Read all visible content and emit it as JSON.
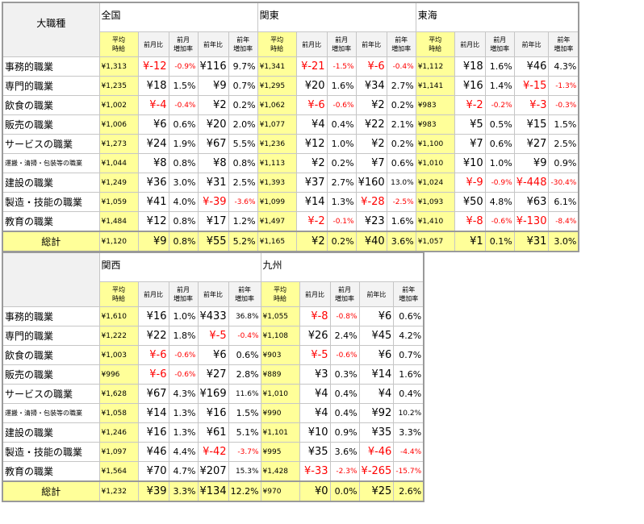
{
  "top_table": {
    "corner_label": "大職種",
    "regions": [
      "全国",
      "関東",
      "東海"
    ],
    "sub_headers": [
      "平均時給",
      "前月比",
      "前月増加率",
      "前年比",
      "前年増加率"
    ],
    "rows": [
      {
        "job": "事務的職業",
        "cells": [
          "¥1,313",
          "¥-12",
          "-0.9%",
          "¥116",
          "9.7%",
          "¥1,341",
          "¥-21",
          "-1.5%",
          "¥-6",
          "-0.4%",
          "¥1,112",
          "¥18",
          "1.6%",
          "¥46",
          "4.3%"
        ]
      },
      {
        "job": "専門的職業",
        "cells": [
          "¥1,235",
          "¥18",
          "1.5%",
          "¥9",
          "0.7%",
          "¥1,295",
          "¥20",
          "1.6%",
          "¥34",
          "2.7%",
          "¥1,141",
          "¥16",
          "1.4%",
          "¥-15",
          "-1.3%"
        ]
      },
      {
        "job": "飲食の職業",
        "cells": [
          "¥1,002",
          "¥-4",
          "-0.4%",
          "¥2",
          "0.2%",
          "¥1,062",
          "¥-6",
          "-0.6%",
          "¥2",
          "0.2%",
          "¥983",
          "¥-2",
          "-0.2%",
          "¥-3",
          "-0.3%"
        ]
      },
      {
        "job": "販売の職業",
        "cells": [
          "¥1,006",
          "¥6",
          "0.6%",
          "¥20",
          "2.0%",
          "¥1,077",
          "¥4",
          "0.4%",
          "¥22",
          "2.1%",
          "¥983",
          "¥5",
          "0.5%",
          "¥15",
          "1.5%"
        ]
      },
      {
        "job": "サービスの職業",
        "cells": [
          "¥1,273",
          "¥24",
          "1.9%",
          "¥67",
          "5.5%",
          "¥1,236",
          "¥12",
          "1.0%",
          "¥2",
          "0.2%",
          "¥1,100",
          "¥7",
          "0.6%",
          "¥27",
          "2.5%"
        ]
      },
      {
        "job": "運搬・清掃・包装等の職業",
        "cells": [
          "¥1,044",
          "¥8",
          "0.8%",
          "¥8",
          "0.8%",
          "¥1,113",
          "¥2",
          "0.2%",
          "¥7",
          "0.6%",
          "¥1,010",
          "¥10",
          "1.0%",
          "¥9",
          "0.9%"
        ]
      },
      {
        "job": "建設の職業",
        "cells": [
          "¥1,249",
          "¥36",
          "3.0%",
          "¥31",
          "2.5%",
          "¥1,393",
          "¥37",
          "2.7%",
          "¥160",
          "13.0%",
          "¥1,024",
          "¥-9",
          "-0.9%",
          "¥-448",
          "-30.4%"
        ]
      },
      {
        "job": "製造・技能の職業",
        "cells": [
          "¥1,059",
          "¥41",
          "4.0%",
          "¥-39",
          "-3.6%",
          "¥1,099",
          "¥14",
          "1.3%",
          "¥-28",
          "-2.5%",
          "¥1,093",
          "¥50",
          "4.8%",
          "¥63",
          "6.1%"
        ]
      },
      {
        "job": "教育の職業",
        "cells": [
          "¥1,484",
          "¥12",
          "0.8%",
          "¥17",
          "1.2%",
          "¥1,497",
          "¥-2",
          "-0.1%",
          "¥23",
          "1.6%",
          "¥1,410",
          "¥-8",
          "-0.6%",
          "¥-130",
          "-8.4%"
        ]
      }
    ],
    "total": {
      "label": "総計",
      "cells": [
        "¥1,120",
        "¥9",
        "0.8%",
        "¥55",
        "5.2%",
        "¥1,165",
        "¥2",
        "0.2%",
        "¥40",
        "3.6%",
        "¥1,057",
        "¥1",
        "0.1%",
        "¥31",
        "3.0%"
      ]
    }
  },
  "bottom_table": {
    "regions": [
      "関西",
      "九州"
    ],
    "rows": [
      {
        "job": "事務的職業",
        "cells": [
          "¥1,610",
          "¥16",
          "1.0%",
          "¥433",
          "36.8%",
          "¥1,055",
          "¥-8",
          "-0.8%",
          "¥6",
          "0.6%"
        ]
      },
      {
        "job": "専門的職業",
        "cells": [
          "¥1,222",
          "¥22",
          "1.8%",
          "¥-5",
          "-0.4%",
          "¥1,108",
          "¥26",
          "2.4%",
          "¥45",
          "4.2%"
        ]
      },
      {
        "job": "飲食の職業",
        "cells": [
          "¥1,003",
          "¥-6",
          "-0.6%",
          "¥6",
          "0.6%",
          "¥903",
          "¥-5",
          "-0.6%",
          "¥6",
          "0.7%"
        ]
      },
      {
        "job": "販売の職業",
        "cells": [
          "¥996",
          "¥-6",
          "-0.6%",
          "¥27",
          "2.8%",
          "¥889",
          "¥3",
          "0.3%",
          "¥14",
          "1.6%"
        ]
      },
      {
        "job": "サービスの職業",
        "cells": [
          "¥1,628",
          "¥67",
          "4.3%",
          "¥169",
          "11.6%",
          "¥1,010",
          "¥4",
          "0.4%",
          "¥4",
          "0.4%"
        ]
      },
      {
        "job": "運搬・清掃・包装等の職業",
        "cells": [
          "¥1,058",
          "¥14",
          "1.3%",
          "¥16",
          "1.5%",
          "¥990",
          "¥4",
          "0.4%",
          "¥92",
          "10.2%"
        ]
      },
      {
        "job": "建設の職業",
        "cells": [
          "¥1,246",
          "¥16",
          "1.3%",
          "¥61",
          "5.1%",
          "¥1,101",
          "¥10",
          "0.9%",
          "¥35",
          "3.3%"
        ]
      },
      {
        "job": "製造・技能の職業",
        "cells": [
          "¥1,097",
          "¥46",
          "4.4%",
          "¥-42",
          "-3.7%",
          "¥995",
          "¥35",
          "3.6%",
          "¥-46",
          "-4.4%"
        ]
      },
      {
        "job": "教育の職業",
        "cells": [
          "¥1,564",
          "¥70",
          "4.7%",
          "¥207",
          "15.3%",
          "¥1,428",
          "¥-33",
          "-2.3%",
          "¥-265",
          "-15.7%"
        ]
      }
    ],
    "total": {
      "label": "総計",
      "cells": [
        "¥1,232",
        "¥39",
        "3.3%",
        "¥134",
        "12.2%",
        "¥970",
        "¥0",
        "0.0%",
        "¥25",
        "2.6%"
      ]
    }
  },
  "colors": {
    "average_highlight": "#ffff99",
    "negative": "#ff0000",
    "border": "#9a9a9a"
  }
}
